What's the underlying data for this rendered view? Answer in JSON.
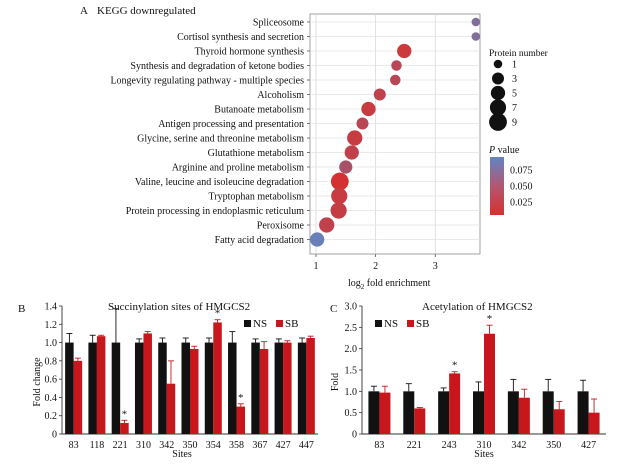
{
  "chart_data": [
    {
      "panel": "A",
      "type": "scatter",
      "title": "KEGG downregulated",
      "xlabel_prefix": "log",
      "xlabel_sub": "2",
      "xlabel_suffix": " fold enrichment",
      "xlim": [
        0.9,
        3.75
      ],
      "xticks": [
        "1",
        "2",
        "3"
      ],
      "grid": true,
      "categories": [
        "Spliceosome",
        "Cortisol synthesis and secretion",
        "Thyroid hormone synthesis",
        "Synthesis and degradation of ketone bodies",
        "Longevity regulating pathway - multiple species",
        "Alcoholism",
        "Butanoate metabolism",
        "Antigen processing and presentation",
        "Glycine, serine and threonine metabolism",
        "Glutathione metabolism",
        "Arginine and proline metabolism",
        "Valine, leucine and isoleucine degradation",
        "Tryptophan metabolism",
        "Protein processing in endoplasmic reticulum",
        "Peroxisome",
        "Fatty acid degradation"
      ],
      "points": [
        {
          "x": 3.68,
          "count": 1,
          "p": 0.065
        },
        {
          "x": 3.68,
          "count": 1,
          "p": 0.065
        },
        {
          "x": 2.48,
          "count": 5,
          "p": 0.018
        },
        {
          "x": 2.35,
          "count": 2,
          "p": 0.03
        },
        {
          "x": 2.33,
          "count": 2,
          "p": 0.03
        },
        {
          "x": 2.07,
          "count": 3,
          "p": 0.025
        },
        {
          "x": 1.88,
          "count": 5,
          "p": 0.02
        },
        {
          "x": 1.78,
          "count": 3,
          "p": 0.03
        },
        {
          "x": 1.65,
          "count": 6,
          "p": 0.02
        },
        {
          "x": 1.6,
          "count": 5,
          "p": 0.025
        },
        {
          "x": 1.5,
          "count": 4,
          "p": 0.04
        },
        {
          "x": 1.4,
          "count": 9,
          "p": 0.012
        },
        {
          "x": 1.39,
          "count": 7,
          "p": 0.02
        },
        {
          "x": 1.38,
          "count": 7,
          "p": 0.022
        },
        {
          "x": 1.18,
          "count": 6,
          "p": 0.025
        },
        {
          "x": 1.02,
          "count": 5,
          "p": 0.08
        }
      ],
      "size_legend": {
        "title": "Protein number",
        "values": [
          "1",
          "3",
          "5",
          "7",
          "9"
        ]
      },
      "color_legend": {
        "title_italic": "P",
        "title_rest": " value",
        "ticks": [
          "0.075",
          "0.050",
          "0.025"
        ],
        "range": [
          0.01,
          0.085
        ],
        "low_color": "#d7302d",
        "high_color": "#6284c2"
      }
    },
    {
      "panel": "B",
      "type": "bar",
      "title": "Succinylation sites of HMGCS2",
      "xlabel": "Sites",
      "ylabel": "Fold change",
      "ylim": [
        0,
        1.4
      ],
      "yticks": [
        "0",
        "0.2",
        "0.4",
        "0.6",
        "0.8",
        "1.0",
        "1.2",
        "1.4"
      ],
      "categories": [
        "83",
        "118",
        "221",
        "310",
        "342",
        "350",
        "354",
        "358",
        "367",
        "427",
        "447"
      ],
      "series": [
        {
          "name": "NS",
          "color": "#111111",
          "values": [
            1.0,
            1.0,
            1.0,
            1.0,
            1.0,
            1.0,
            1.0,
            1.0,
            1.0,
            1.0,
            1.0
          ],
          "errors": [
            0.1,
            0.08,
            0.37,
            0.04,
            0.05,
            0.05,
            0.05,
            0.12,
            0.04,
            0.04,
            0.05
          ]
        },
        {
          "name": "SB",
          "color": "#c8161d",
          "values": [
            0.8,
            1.07,
            0.12,
            1.1,
            0.55,
            0.93,
            1.22,
            0.3,
            0.93,
            1.0,
            1.05
          ],
          "errors": [
            0.03,
            0.01,
            0.03,
            0.02,
            0.25,
            0.03,
            0.03,
            0.03,
            0.08,
            0.02,
            0.02
          ]
        }
      ],
      "significance": [
        "",
        "",
        "*",
        "",
        "",
        "",
        "*",
        "*",
        "",
        "",
        ""
      ],
      "legend": "top"
    },
    {
      "panel": "C",
      "type": "bar",
      "title": "Acetylation of HMGCS2",
      "xlabel": "Sites",
      "ylabel": "Fold",
      "ylim": [
        0,
        3.0
      ],
      "yticks": [
        "0",
        "0.5",
        "1.0",
        "1.5",
        "2.0",
        "2.5",
        "3.0"
      ],
      "categories": [
        "83",
        "221",
        "243",
        "310",
        "342",
        "350",
        "427"
      ],
      "series": [
        {
          "name": "NS",
          "color": "#111111",
          "values": [
            1.0,
            1.0,
            1.0,
            1.0,
            1.0,
            1.0,
            1.0
          ],
          "errors": [
            0.12,
            0.18,
            0.08,
            0.22,
            0.28,
            0.28,
            0.26
          ]
        },
        {
          "name": "SB",
          "color": "#c8161d",
          "values": [
            0.97,
            0.6,
            1.42,
            2.35,
            0.85,
            0.58,
            0.5
          ],
          "errors": [
            0.15,
            0.02,
            0.04,
            0.2,
            0.2,
            0.18,
            0.32
          ]
        }
      ],
      "significance": [
        "",
        "",
        "*",
        "*",
        "",
        "",
        ""
      ],
      "legend": "top"
    }
  ],
  "labels": {
    "a": "A",
    "b": "B",
    "c": "C"
  }
}
